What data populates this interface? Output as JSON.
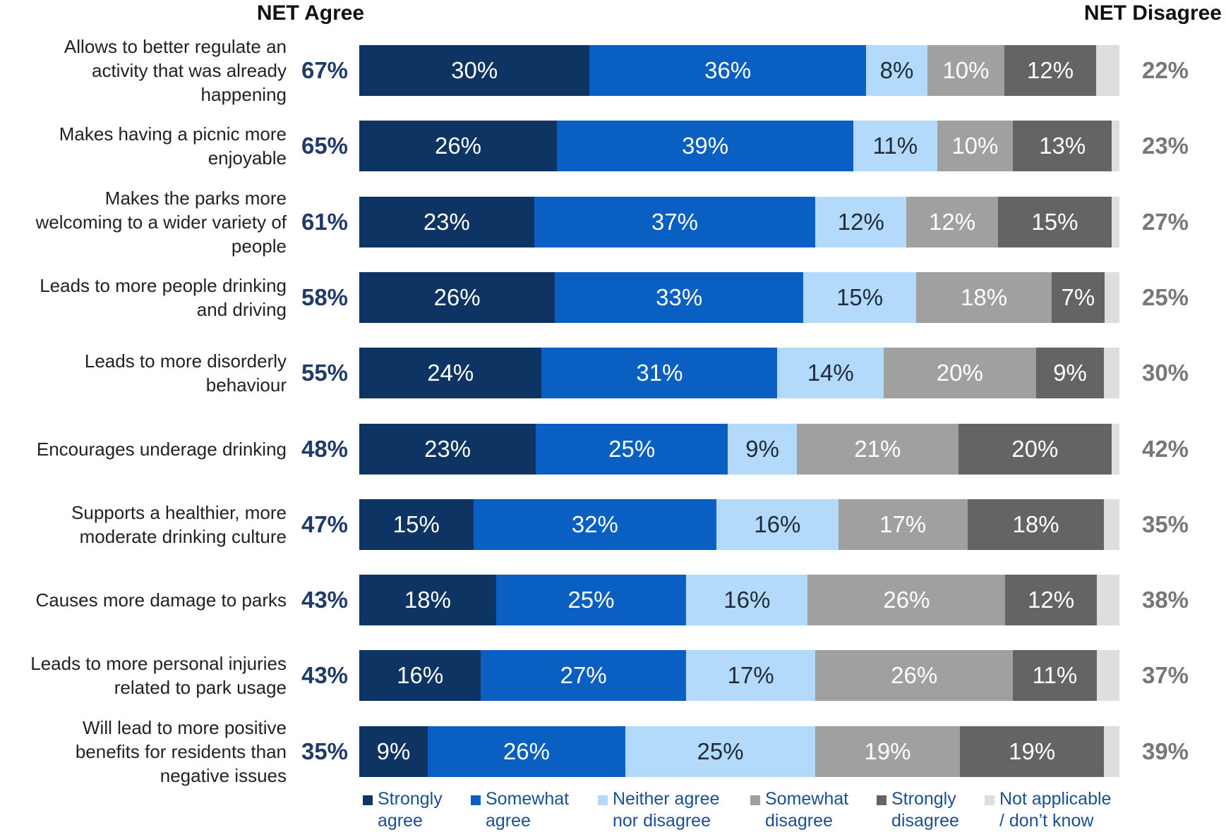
{
  "chart_data": {
    "type": "bar",
    "orientation": "horizontal",
    "stacked": true,
    "header_left": "NET Agree",
    "header_right": "NET Disagree",
    "categories": [
      "Allows to better regulate an activity that was already happening",
      "Makes having a picnic more enjoyable",
      "Makes the parks more welcoming to a wider variety of people",
      "Leads to more people drinking and driving",
      "Leads to more disorderly behaviour",
      "Encourages underage drinking",
      "Supports a healthier, more moderate drinking culture",
      "Causes more damage to parks",
      "Leads to more personal injuries related to park usage",
      "Will lead to more positive benefits for residents than negative issues"
    ],
    "category_lines": [
      [
        "Allows to better regulate an",
        "activity that was already",
        "happening"
      ],
      [
        "Makes having a picnic more",
        "enjoyable"
      ],
      [
        "Makes the parks more",
        "welcoming to a wider variety of",
        "people"
      ],
      [
        "Leads to more people drinking",
        "and driving"
      ],
      [
        "Leads to more disorderly",
        "behaviour"
      ],
      [
        "Encourages underage drinking"
      ],
      [
        "Supports a healthier, more",
        "moderate drinking culture"
      ],
      [
        "Causes more damage to parks"
      ],
      [
        "Leads to more personal injuries",
        "related to park usage"
      ],
      [
        "Will lead to more positive",
        "benefits for residents than",
        "negative issues"
      ]
    ],
    "net_agree": [
      "67%",
      "65%",
      "61%",
      "58%",
      "55%",
      "48%",
      "47%",
      "43%",
      "43%",
      "35%"
    ],
    "net_disagree": [
      "22%",
      "23%",
      "27%",
      "25%",
      "30%",
      "42%",
      "35%",
      "38%",
      "37%",
      "39%"
    ],
    "series": [
      {
        "name": "Strongly agree",
        "legend_lines": [
          "Strongly",
          "agree"
        ],
        "color": "#0d3463",
        "text_color": "#ffffff",
        "values": [
          30,
          26,
          23,
          26,
          24,
          23,
          15,
          18,
          16,
          9
        ]
      },
      {
        "name": "Somewhat agree",
        "legend_lines": [
          "Somewhat",
          "agree"
        ],
        "color": "#0a5fc2",
        "text_color": "#ffffff",
        "values": [
          36,
          39,
          37,
          33,
          31,
          25,
          32,
          25,
          27,
          26
        ]
      },
      {
        "name": "Neither agree nor disagree",
        "legend_lines": [
          "Neither agree",
          "nor disagree"
        ],
        "color": "#b3d9fb",
        "text_color": "#1f2a3a",
        "values": [
          8,
          11,
          12,
          15,
          14,
          9,
          16,
          16,
          17,
          25
        ]
      },
      {
        "name": "Somewhat disagree",
        "legend_lines": [
          "Somewhat",
          "disagree"
        ],
        "color": "#a0a0a0",
        "text_color": "#ffffff",
        "values": [
          10,
          10,
          12,
          18,
          20,
          21,
          17,
          26,
          26,
          19
        ]
      },
      {
        "name": "Strongly disagree",
        "legend_lines": [
          "Strongly",
          "disagree"
        ],
        "color": "#646464",
        "text_color": "#ffffff",
        "values": [
          12,
          13,
          15,
          7,
          9,
          20,
          18,
          12,
          11,
          19
        ]
      },
      {
        "name": "Not applicable / don't know",
        "legend_lines": [
          "Not applicable",
          "/ don’t know"
        ],
        "color": "#dedede",
        "text_color": "#555555",
        "values": [
          3,
          1,
          1,
          2,
          2,
          1,
          2,
          3,
          3,
          2
        ]
      }
    ],
    "label_suffix": "%",
    "legend_placement": "bottom",
    "grid": false
  }
}
